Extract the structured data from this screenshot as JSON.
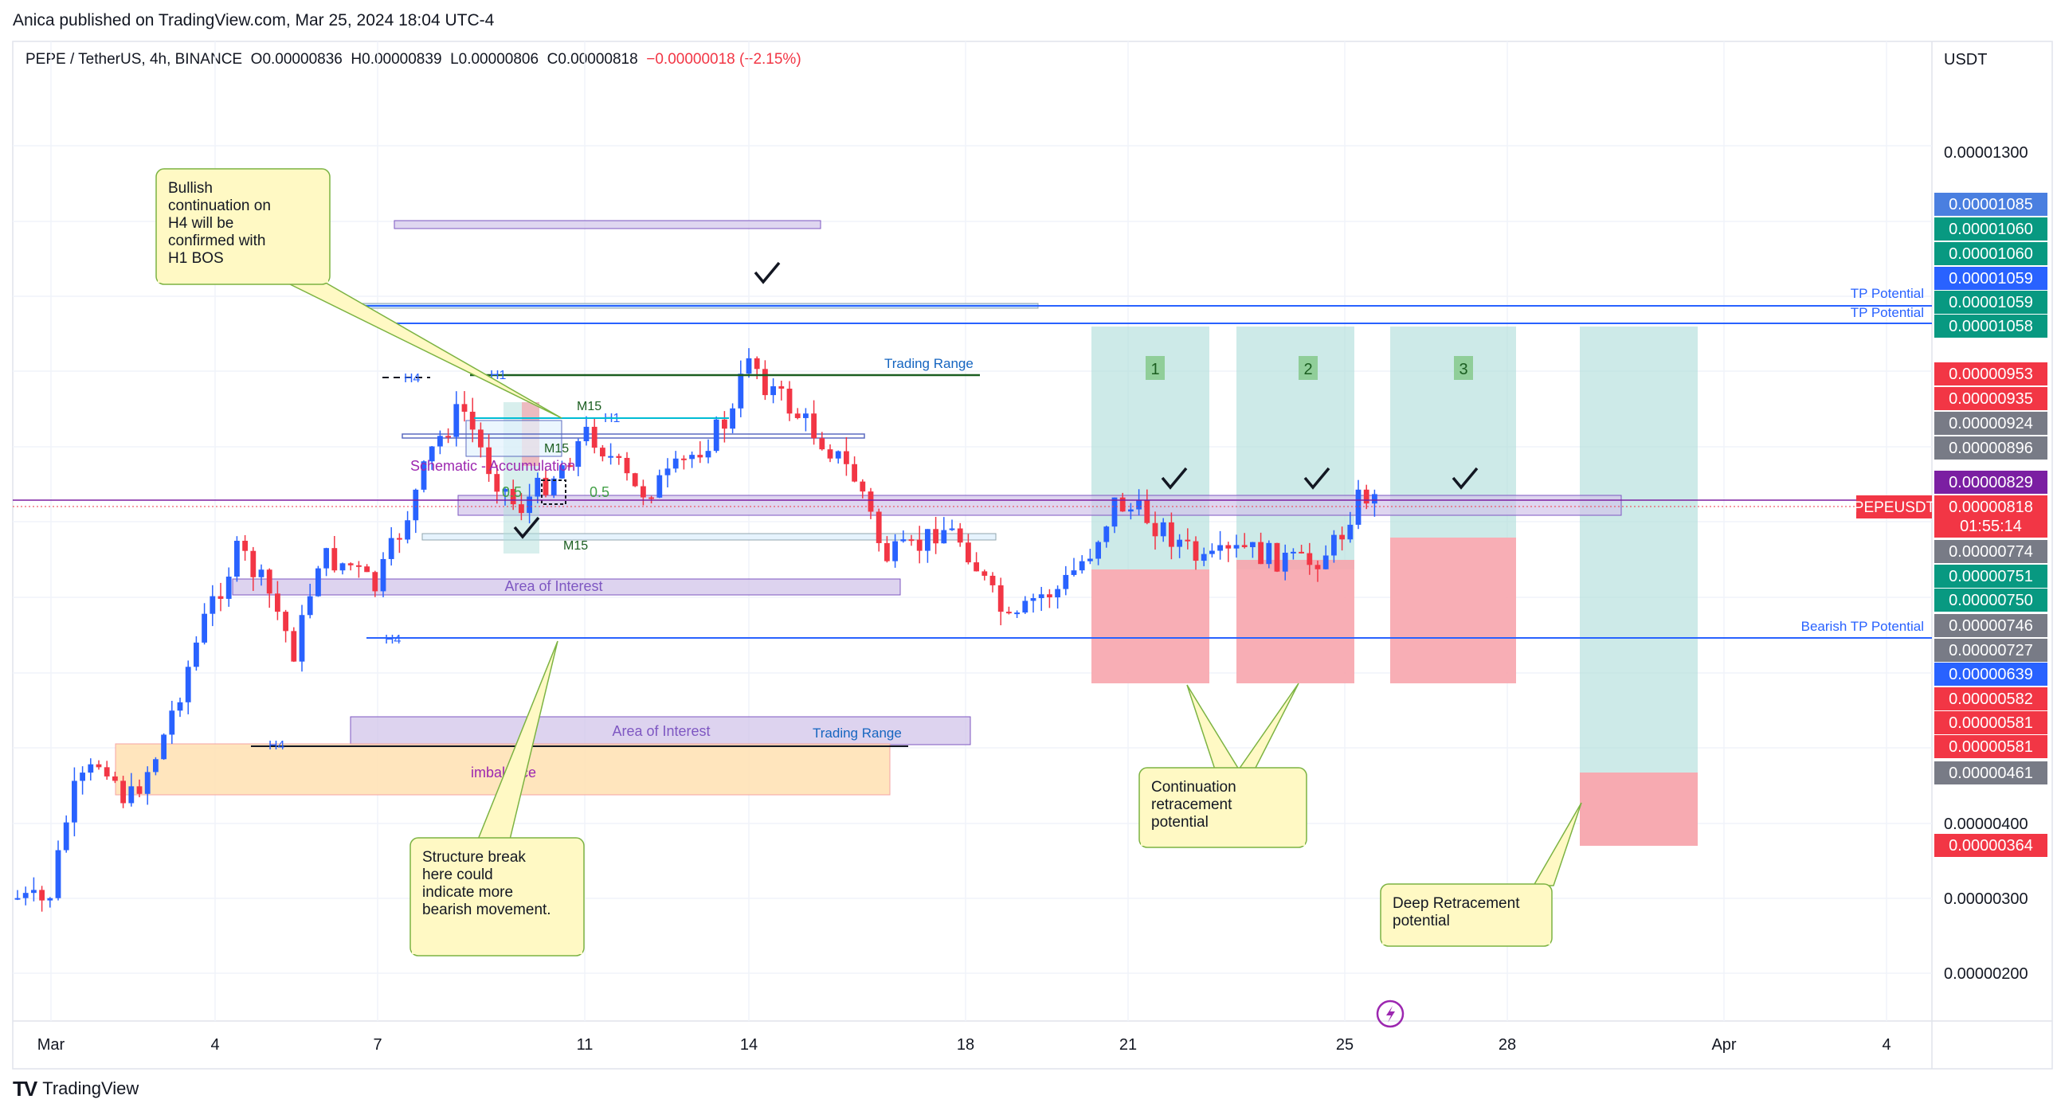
{
  "publisher_line": "Anica published on TradingView.com, Mar 25, 2024 18:04 UTC-4",
  "legend": {
    "symbol": "PEPE / TetherUS, 4h, BINANCE",
    "open": "O0.00000836",
    "high": "H0.00000839",
    "low": "L0.00000806",
    "close": "C0.00000818",
    "change": "−0.00000018 (−2.15%)"
  },
  "unit": "USDT",
  "footer": {
    "brand": "TradingView"
  },
  "colors": {
    "up": "#2962ff",
    "down": "#f23645",
    "tp_line": "#2962ff",
    "grid": "#f0f3fa"
  },
  "chart_data": {
    "type": "candlestick",
    "timeframe": "4h",
    "x_tick_labels": [
      "Mar",
      "4",
      "7",
      "11",
      "14",
      "18",
      "21",
      "25",
      "28",
      "Apr",
      "4"
    ],
    "y_tick_labels": [
      "0.00001300",
      "0.00000400",
      "0.00000300",
      "0.00000200"
    ],
    "ylim": [
      1.6e-06,
      1.42e-05
    ],
    "grid": true,
    "price_badges": [
      {
        "label": "0.00001085",
        "color": "#4a7fe0"
      },
      {
        "label": "0.00001060",
        "color": "#089981"
      },
      {
        "label": "0.00001060",
        "color": "#089981"
      },
      {
        "label": "0.00001059",
        "color": "#2962ff"
      },
      {
        "label": "0.00001059",
        "color": "#089981"
      },
      {
        "label": "0.00001058",
        "color": "#089981"
      },
      {
        "label": "0.00000953",
        "color": "#f23645"
      },
      {
        "label": "0.00000935",
        "color": "#f23645"
      },
      {
        "label": "0.00000924",
        "color": "#787b86"
      },
      {
        "label": "0.00000896",
        "color": "#787b86"
      },
      {
        "label": "0.00000829",
        "color": "#7b1fa2"
      },
      {
        "label": "0.00000818",
        "color": "#f23645"
      },
      {
        "label": "01:55:14",
        "color": "#f23645"
      },
      {
        "label": "0.00000774",
        "color": "#787b86"
      },
      {
        "label": "0.00000751",
        "color": "#089981"
      },
      {
        "label": "0.00000750",
        "color": "#089981"
      },
      {
        "label": "0.00000746",
        "color": "#787b86"
      },
      {
        "label": "0.00000727",
        "color": "#787b86"
      },
      {
        "label": "0.00000639",
        "color": "#2962ff"
      },
      {
        "label": "0.00000582",
        "color": "#f23645"
      },
      {
        "label": "0.00000581",
        "color": "#f23645"
      },
      {
        "label": "0.00000581",
        "color": "#f23645"
      },
      {
        "label": "0.00000461",
        "color": "#787b86"
      },
      {
        "label": "0.00000364",
        "color": "#f23645"
      }
    ],
    "symbol_badge": "PEPEUSDT",
    "line_labels": {
      "tp1": "TP Potential",
      "tp2": "TP Potential",
      "bearish_tp": "Bearish TP Potential",
      "trading_range_top": "Trading Range",
      "trading_range_bottom": "Trading Range",
      "aoi_top": "Area of Interest",
      "aoi_bottom": "Area of Interest",
      "imbalance": "imbalance",
      "h4_a": "H4",
      "h4_b": "H4",
      "h4_c": "H4",
      "h1_a": "H1",
      "h1_b": "H1",
      "m15_a": "M15",
      "m15_b": "M15",
      "m15_c": "M15",
      "schematic": "Schematic - Accumulation",
      "fib_a": "0.5",
      "fib_b": "0.5",
      "scenario_1": "1",
      "scenario_2": "2",
      "scenario_3": "3"
    },
    "callouts": {
      "bullish": "Bullish continuation on H4 will be confirmed with H1 BOS",
      "structure": "Structure break here could indicate more bearish movement.",
      "continuation": "Continuation retracement potential",
      "deep": "Deep Retracement potential"
    }
  }
}
